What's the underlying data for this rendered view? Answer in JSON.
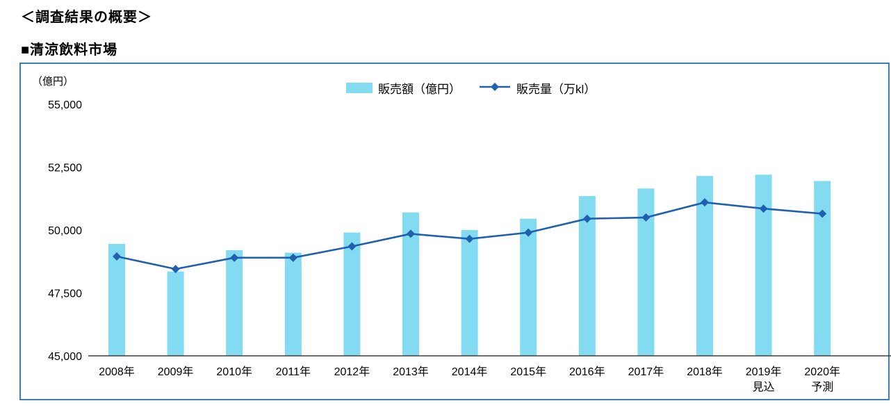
{
  "page": {
    "title": "＜調査結果の概要＞",
    "section_title": "■清涼飲料市場"
  },
  "chart_data": {
    "type": "bar+line",
    "title": "",
    "unit_label": "（億円）",
    "legend_position": "top-center",
    "grid": false,
    "legend": [
      {
        "name": "販売額（億円）",
        "marker": "bar"
      },
      {
        "name": "販売量（万kl）",
        "marker": "line-diamond"
      }
    ],
    "categories": [
      {
        "label": "2008年",
        "sub": ""
      },
      {
        "label": "2009年",
        "sub": ""
      },
      {
        "label": "2010年",
        "sub": ""
      },
      {
        "label": "2011年",
        "sub": ""
      },
      {
        "label": "2012年",
        "sub": ""
      },
      {
        "label": "2013年",
        "sub": ""
      },
      {
        "label": "2014年",
        "sub": ""
      },
      {
        "label": "2015年",
        "sub": ""
      },
      {
        "label": "2016年",
        "sub": ""
      },
      {
        "label": "2017年",
        "sub": ""
      },
      {
        "label": "2018年",
        "sub": ""
      },
      {
        "label": "2019年",
        "sub": "見込"
      },
      {
        "label": "2020年",
        "sub": "予測"
      }
    ],
    "series": [
      {
        "name": "販売額（億円）",
        "type": "bar",
        "unit": "億円",
        "axis": "left",
        "values": [
          49450,
          48350,
          49200,
          49100,
          49900,
          50700,
          50000,
          50450,
          51350,
          51650,
          52150,
          52200,
          51950
        ]
      },
      {
        "name": "販売量（万kl）",
        "type": "line",
        "unit": "万kl",
        "axis": "right-hidden",
        "values": [
          1895,
          1845,
          1890,
          1890,
          1935,
          1985,
          1965,
          1990,
          2045,
          2050,
          2110,
          2085,
          2065
        ]
      }
    ],
    "ylim": [
      45000,
      55000
    ],
    "yticks": [
      {
        "label": "55,000",
        "value": 55000
      },
      {
        "label": "52,500",
        "value": 52500
      },
      {
        "label": "50,000",
        "value": 50000
      },
      {
        "label": "47,500",
        "value": 47500
      },
      {
        "label": "45,000",
        "value": 45000
      }
    ],
    "y2lim": [
      1500,
      2500
    ],
    "y2_axis_visible": false,
    "colors": {
      "bar": "#82dbf0",
      "line": "#2060ae",
      "frame": "#3d7ebb",
      "axis": "#404040",
      "text": "#000000"
    }
  }
}
